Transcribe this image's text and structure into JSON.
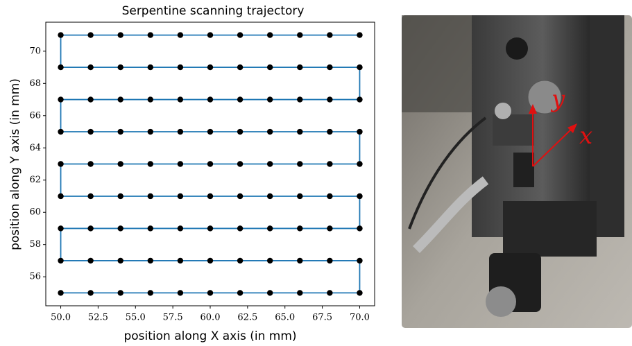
{
  "chart_data": {
    "type": "line",
    "title": "Serpentine scanning trajectory",
    "x_label": "position along X axis (in mm)",
    "y_label": "position along Y axis (in mm)",
    "color": "#1f77b4",
    "marker_color": "#000000",
    "markers": true,
    "x": [
      50,
      52,
      54,
      56,
      58,
      60,
      62,
      64,
      66,
      68,
      70,
      70,
      68,
      66,
      64,
      62,
      60,
      58,
      56,
      54,
      52,
      50,
      50,
      52,
      54,
      56,
      58,
      60,
      62,
      64,
      66,
      68,
      70,
      70,
      68,
      66,
      64,
      62,
      60,
      58,
      56,
      54,
      52,
      50,
      50,
      52,
      54,
      56,
      58,
      60,
      62,
      64,
      66,
      68,
      70,
      70,
      68,
      66,
      64,
      62,
      60,
      58,
      56,
      54,
      52,
      50,
      50,
      52,
      54,
      56,
      58,
      60,
      62,
      64,
      66,
      68,
      70,
      70,
      68,
      66,
      64,
      62,
      60,
      58,
      56,
      54,
      52,
      50,
      50,
      52,
      54,
      56,
      58,
      60,
      62,
      64,
      66,
      68,
      70
    ],
    "values": [
      55,
      55,
      55,
      55,
      55,
      55,
      55,
      55,
      55,
      55,
      55,
      57,
      57,
      57,
      57,
      57,
      57,
      57,
      57,
      57,
      57,
      57,
      59,
      59,
      59,
      59,
      59,
      59,
      59,
      59,
      59,
      59,
      59,
      61,
      61,
      61,
      61,
      61,
      61,
      61,
      61,
      61,
      61,
      61,
      63,
      63,
      63,
      63,
      63,
      63,
      63,
      63,
      63,
      63,
      63,
      65,
      65,
      65,
      65,
      65,
      65,
      65,
      65,
      65,
      65,
      65,
      67,
      67,
      67,
      67,
      67,
      67,
      67,
      67,
      67,
      67,
      67,
      69,
      69,
      69,
      69,
      69,
      69,
      69,
      69,
      69,
      69,
      69,
      71,
      71,
      71,
      71,
      71,
      71,
      71,
      71,
      71,
      71,
      71
    ],
    "xlim": [
      49,
      71
    ],
    "ylim": [
      54.2,
      71.8
    ],
    "xticks": [
      {
        "value": 50,
        "label": "50.0"
      },
      {
        "value": 52.5,
        "label": "52.5"
      },
      {
        "value": 55,
        "label": "55.0"
      },
      {
        "value": 57.5,
        "label": "57.5"
      },
      {
        "value": 60,
        "label": "60.0"
      },
      {
        "value": 62.5,
        "label": "62.5"
      },
      {
        "value": 65,
        "label": "65.0"
      },
      {
        "value": 67.5,
        "label": "67.5"
      },
      {
        "value": 70,
        "label": "70.0"
      }
    ],
    "yticks": [
      56,
      58,
      60,
      62,
      64,
      66,
      68,
      70
    ]
  },
  "photo": {
    "axis_labels": [
      "y",
      "x"
    ]
  }
}
